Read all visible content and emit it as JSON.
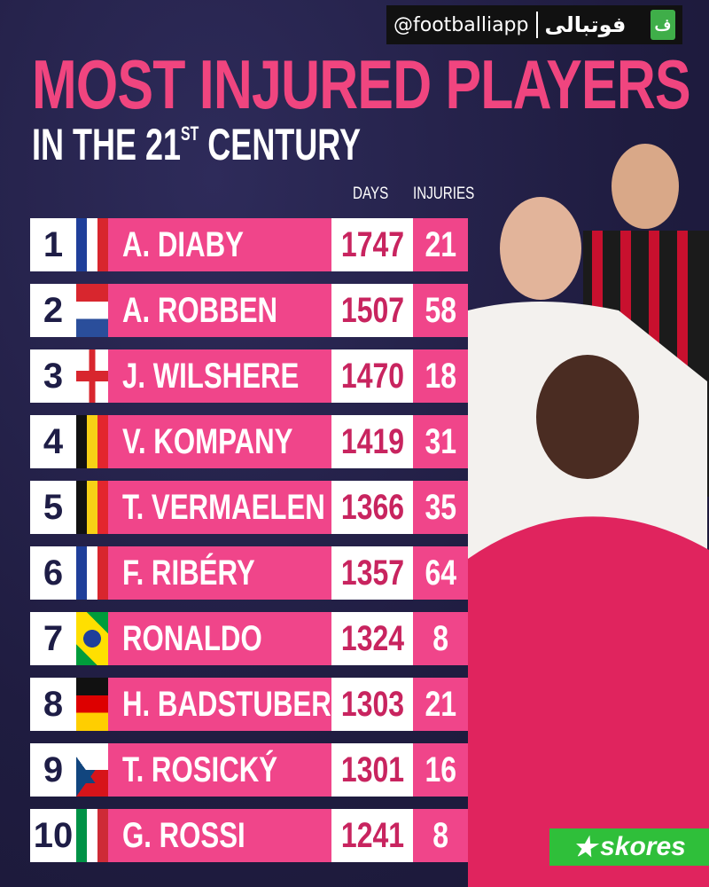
{
  "title": "MOST INJURED PLAYERS",
  "subtitle": {
    "prefix": "IN THE 21",
    "sup": "ST",
    "suffix": " CENTURY"
  },
  "watermark": {
    "handle": "@footballiapp",
    "arabic": "فوتبالی",
    "logo": "ف"
  },
  "columns": {
    "days": "DAYS",
    "injuries": "INJURIES"
  },
  "rows": [
    {
      "rank": "1",
      "flag": "france",
      "name": "A. DIABY",
      "days": "1747",
      "injuries": "21"
    },
    {
      "rank": "2",
      "flag": "netherlands",
      "name": "A. ROBBEN",
      "days": "1507",
      "injuries": "58"
    },
    {
      "rank": "3",
      "flag": "england",
      "name": "J. WILSHERE",
      "days": "1470",
      "injuries": "18"
    },
    {
      "rank": "4",
      "flag": "belgium",
      "name": "V. KOMPANY",
      "days": "1419",
      "injuries": "31"
    },
    {
      "rank": "5",
      "flag": "belgium",
      "name": "T. VERMAELEN",
      "days": "1366",
      "injuries": "35"
    },
    {
      "rank": "6",
      "flag": "france",
      "name": "F. RIBÉRY",
      "days": "1357",
      "injuries": "64"
    },
    {
      "rank": "7",
      "flag": "brazil",
      "name": "RONALDO",
      "days": "1324",
      "injuries": "8"
    },
    {
      "rank": "8",
      "flag": "germany",
      "name": "H. BADSTUBER",
      "days": "1303",
      "injuries": "21"
    },
    {
      "rank": "9",
      "flag": "czech-republic",
      "name": "T. ROSICKÝ",
      "days": "1301",
      "injuries": "16"
    },
    {
      "rank": "10",
      "flag": "italy",
      "name": "G. ROSSI",
      "days": "1241",
      "injuries": "8"
    }
  ],
  "brand": {
    "name": "skores",
    "icon": "star-icon"
  },
  "colors": {
    "pink": "#f0458a",
    "navy": "#232046",
    "days_text": "#c8245f"
  }
}
